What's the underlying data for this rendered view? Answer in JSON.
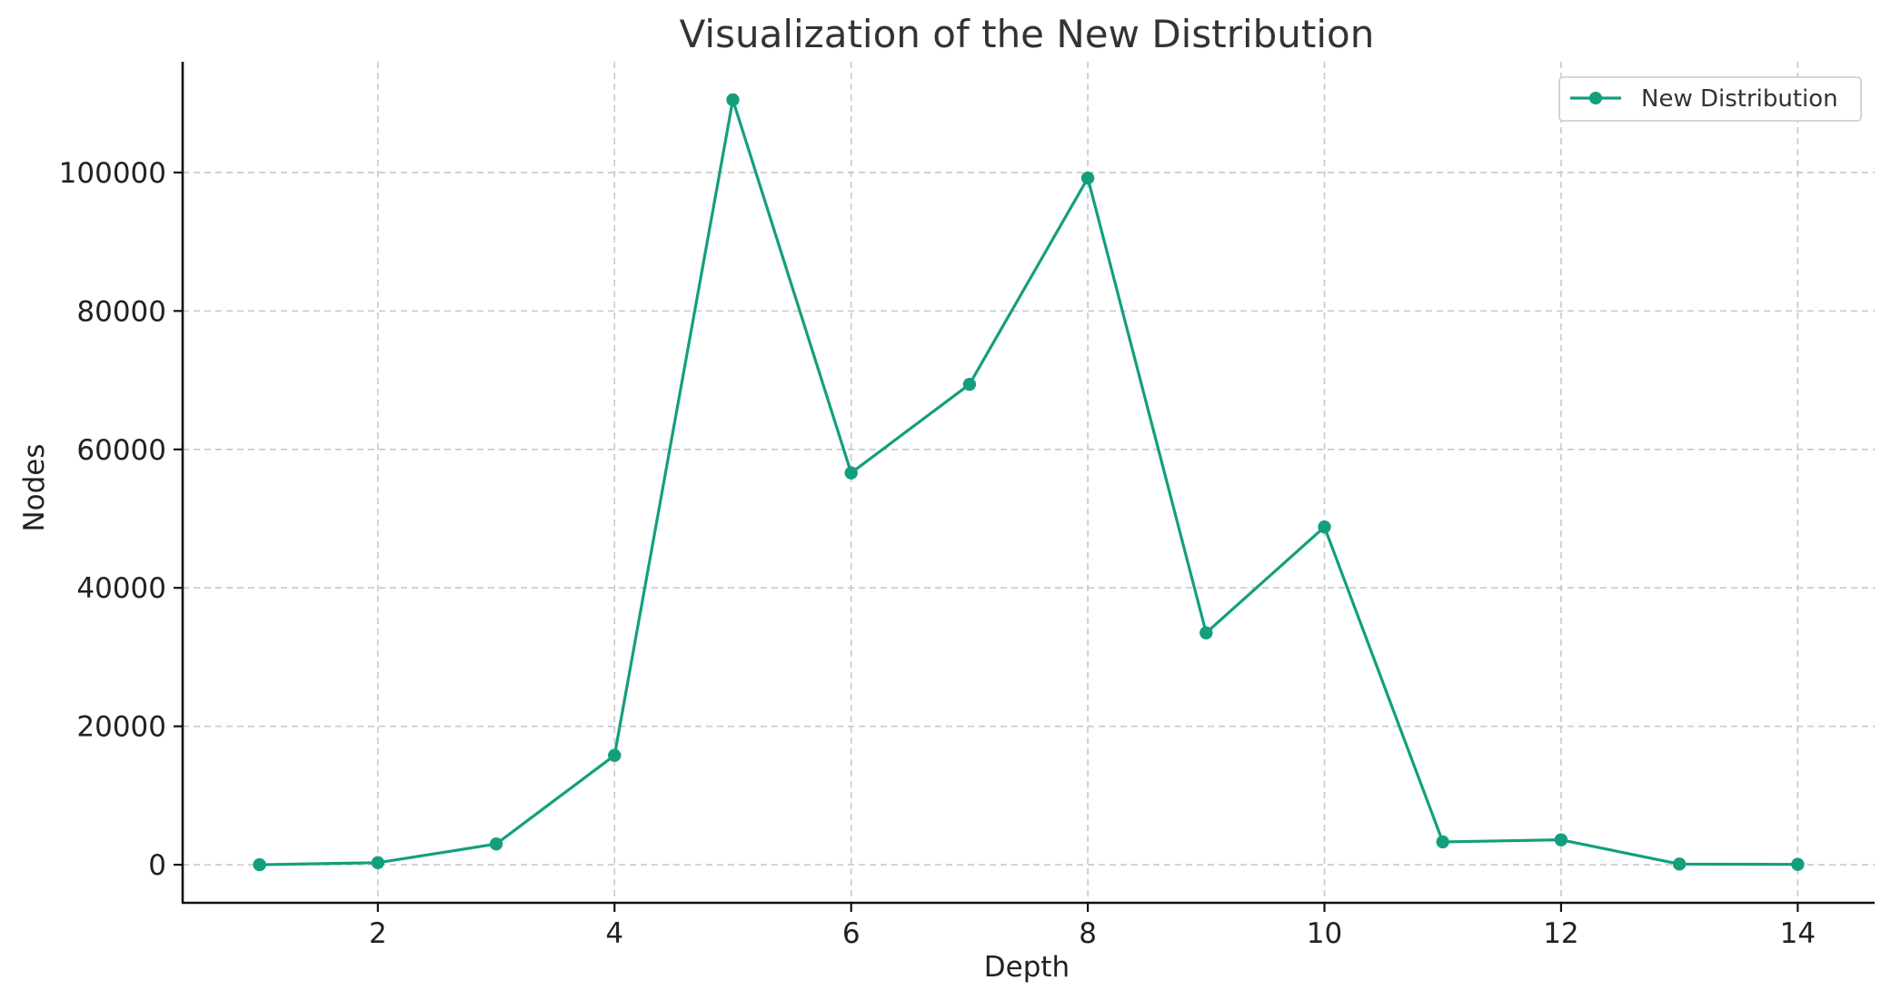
{
  "chart_data": {
    "type": "line",
    "title": "Visualization of the New Distribution",
    "xlabel": "Depth",
    "ylabel": "Nodes",
    "x": [
      1,
      2,
      3,
      4,
      5,
      6,
      7,
      8,
      9,
      10,
      11,
      12,
      13,
      14
    ],
    "series": [
      {
        "name": "New Distribution",
        "values": [
          0,
          300,
          3000,
          15800,
          110500,
          56600,
          69400,
          99200,
          33500,
          48800,
          3300,
          3600,
          100,
          50
        ],
        "color": "#139f7d",
        "marker": "circle"
      }
    ],
    "xticks": [
      2,
      4,
      6,
      8,
      10,
      12,
      14
    ],
    "yticks": [
      0,
      20000,
      40000,
      60000,
      80000,
      100000
    ],
    "xlim": [
      0.35,
      14.65
    ],
    "ylim": [
      -5500,
      116000
    ],
    "grid": true,
    "legend_position": "top-right"
  }
}
